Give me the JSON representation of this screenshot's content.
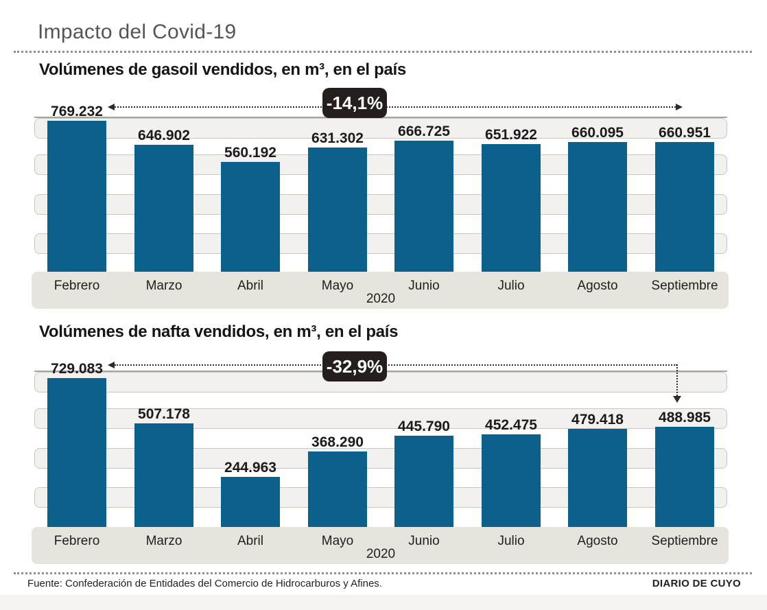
{
  "page": {
    "title": "Impacto del Covid-19",
    "source": "Fuente: Confederación de Entidades del Comercio de Hidrocarburos y Afines.",
    "brand": "DIARIO DE CUYO"
  },
  "colors": {
    "bar": "#0b618c",
    "badge_bg": "#241e1c",
    "badge_text": "#ffffff",
    "band_fill": "#f2f1ee",
    "band_border": "#c9c6c0",
    "axis_band": "#e7e4dd",
    "title_gray": "#555457",
    "text_dark": "#1d1a1b",
    "bottom_strip": "#f5f4f3"
  },
  "chart_data": [
    {
      "type": "bar",
      "title": "Volúmenes de gasoil vendidos, en m³, en el país",
      "categories": [
        "Febrero",
        "Marzo",
        "Abril",
        "Mayo",
        "Junio",
        "Julio",
        "Agosto",
        "Septiembre"
      ],
      "values": [
        769232,
        646902,
        560192,
        631302,
        666725,
        651922,
        660095,
        660951
      ],
      "value_labels": [
        "769.232",
        "646.902",
        "560.192",
        "631.302",
        "666.725",
        "651.922",
        "660.095",
        "660.951"
      ],
      "year_label": "2020",
      "change_badge": "-14,1%",
      "change_from": "Febrero",
      "change_to": "Septiembre",
      "arrow": "double-headed-horizontal",
      "unit": "m³",
      "xlabel": "",
      "ylabel": "",
      "y_axis_labels": "none",
      "grid": "horizontal rounded bands",
      "legend": "none"
    },
    {
      "type": "bar",
      "title": "Volúmenes de nafta vendidos, en m³, en el país",
      "categories": [
        "Febrero",
        "Marzo",
        "Abril",
        "Mayo",
        "Junio",
        "Julio",
        "Agosto",
        "Septiembre"
      ],
      "values": [
        729083,
        507178,
        244963,
        368290,
        445790,
        452475,
        479418,
        488985
      ],
      "value_labels": [
        "729.083",
        "507.178",
        "244.963",
        "368.290",
        "445.790",
        "452.475",
        "479.418",
        "488.985"
      ],
      "year_label": "2020",
      "change_badge": "-32,9%",
      "change_from": "Febrero",
      "change_to": "Septiembre",
      "arrow": "horizontal-then-down",
      "unit": "m³",
      "xlabel": "",
      "ylabel": "",
      "y_axis_labels": "none",
      "grid": "horizontal rounded bands",
      "legend": "none"
    }
  ]
}
